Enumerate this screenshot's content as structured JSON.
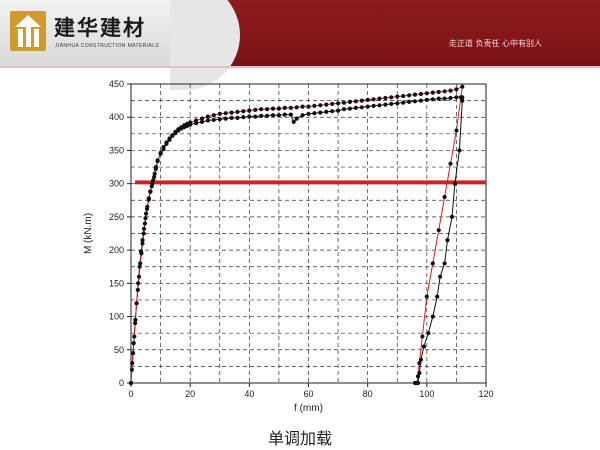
{
  "header": {
    "logo_name": "建华建材",
    "logo_subtitle": "JIANHUA CONSTRUCTION MATERIALS",
    "slogan": "走正道  负责任  心中有别人"
  },
  "caption": "单调加载",
  "chart_data": {
    "type": "line",
    "xlabel": "f (mm)",
    "ylabel": "M (kN.m)",
    "xlim": [
      0,
      120
    ],
    "ylim": [
      0,
      450
    ],
    "x_ticks": [
      0,
      20,
      40,
      60,
      80,
      100,
      120
    ],
    "y_ticks": [
      0,
      50,
      100,
      150,
      200,
      250,
      300,
      350,
      400,
      450
    ],
    "grid": "dashed",
    "colors": {
      "series_a": "#111111",
      "series_b": "#d42020",
      "reference": "#d42020"
    },
    "reference_line": {
      "y": 302
    },
    "series": [
      {
        "points": [
          [
            0,
            0
          ],
          [
            0.3,
            20
          ],
          [
            0.7,
            45
          ],
          [
            1.1,
            70
          ],
          [
            1.5,
            95
          ],
          [
            1.9,
            120
          ],
          [
            2.3,
            140
          ],
          [
            2.7,
            160
          ],
          [
            3.1,
            180
          ],
          [
            3.5,
            195
          ],
          [
            3.9,
            210
          ],
          [
            4.3,
            225
          ],
          [
            4.7,
            240
          ],
          [
            5.1,
            255
          ],
          [
            5.5,
            265
          ],
          [
            6.0,
            278
          ],
          [
            6.5,
            288
          ],
          [
            7.0,
            296
          ],
          [
            7.5,
            305
          ],
          [
            8.0,
            315
          ],
          [
            8.5,
            325
          ],
          [
            9.0,
            335
          ],
          [
            10,
            345
          ],
          [
            11,
            352
          ],
          [
            12,
            360
          ],
          [
            13,
            366
          ],
          [
            14,
            372
          ],
          [
            15,
            376
          ],
          [
            16,
            380
          ],
          [
            17,
            383
          ],
          [
            18,
            385
          ],
          [
            19,
            387
          ],
          [
            20,
            389
          ],
          [
            22,
            391
          ],
          [
            24,
            393
          ],
          [
            26,
            395
          ],
          [
            28,
            396
          ],
          [
            30,
            397
          ],
          [
            32,
            398
          ],
          [
            34,
            399
          ],
          [
            36,
            399
          ],
          [
            38,
            400
          ],
          [
            40,
            401
          ],
          [
            42,
            401
          ],
          [
            44,
            402
          ],
          [
            46,
            402
          ],
          [
            48,
            403
          ],
          [
            50,
            403
          ],
          [
            52,
            404
          ],
          [
            54,
            404
          ],
          [
            55,
            393
          ],
          [
            56,
            398
          ],
          [
            58,
            403
          ],
          [
            60,
            405
          ],
          [
            62,
            406
          ],
          [
            64,
            407
          ],
          [
            66,
            408
          ],
          [
            68,
            409
          ],
          [
            70,
            410
          ],
          [
            72,
            412
          ],
          [
            74,
            413
          ],
          [
            76,
            414
          ],
          [
            78,
            415
          ],
          [
            80,
            416
          ],
          [
            82,
            417
          ],
          [
            84,
            418
          ],
          [
            86,
            419
          ],
          [
            88,
            420
          ],
          [
            90,
            421
          ],
          [
            92,
            422
          ],
          [
            94,
            423
          ],
          [
            96,
            424
          ],
          [
            98,
            425
          ],
          [
            100,
            426
          ],
          [
            102,
            427
          ],
          [
            104,
            428
          ],
          [
            106,
            428
          ],
          [
            108,
            429
          ],
          [
            110,
            430
          ],
          [
            112,
            430
          ],
          [
            112,
            425
          ],
          [
            111,
            350
          ],
          [
            109.5,
            300
          ],
          [
            108.5,
            250
          ],
          [
            107,
            215
          ],
          [
            106,
            180
          ],
          [
            104.5,
            160
          ],
          [
            103.5,
            130
          ],
          [
            102,
            100
          ],
          [
            100.5,
            75
          ],
          [
            99,
            55
          ],
          [
            98,
            35
          ],
          [
            97.5,
            15
          ],
          [
            97,
            0
          ],
          [
            96,
            0
          ]
        ]
      },
      {
        "points": [
          [
            0,
            0
          ],
          [
            0.4,
            30
          ],
          [
            0.9,
            60
          ],
          [
            1.4,
            90
          ],
          [
            1.9,
            120
          ],
          [
            2.4,
            150
          ],
          [
            2.9,
            175
          ],
          [
            3.4,
            198
          ],
          [
            3.9,
            215
          ],
          [
            4.4,
            232
          ],
          [
            4.9,
            248
          ],
          [
            5.4,
            262
          ],
          [
            6.0,
            276
          ],
          [
            6.6,
            288
          ],
          [
            7.2,
            300
          ],
          [
            7.8,
            310
          ],
          [
            8.4,
            322
          ],
          [
            9.0,
            334
          ],
          [
            10,
            346
          ],
          [
            11,
            355
          ],
          [
            12,
            362
          ],
          [
            13,
            368
          ],
          [
            14,
            373
          ],
          [
            15,
            378
          ],
          [
            16,
            382
          ],
          [
            17,
            385
          ],
          [
            18,
            388
          ],
          [
            19,
            390
          ],
          [
            20,
            392
          ],
          [
            22,
            395
          ],
          [
            24,
            398
          ],
          [
            26,
            401
          ],
          [
            28,
            403
          ],
          [
            30,
            405
          ],
          [
            32,
            406
          ],
          [
            34,
            407
          ],
          [
            36,
            408
          ],
          [
            38,
            409
          ],
          [
            40,
            410
          ],
          [
            42,
            411
          ],
          [
            44,
            412
          ],
          [
            46,
            412
          ],
          [
            48,
            413
          ],
          [
            50,
            413
          ],
          [
            52,
            414
          ],
          [
            54,
            414
          ],
          [
            56,
            415
          ],
          [
            58,
            416
          ],
          [
            60,
            416
          ],
          [
            62,
            417
          ],
          [
            64,
            418
          ],
          [
            66,
            419
          ],
          [
            68,
            420
          ],
          [
            70,
            421
          ],
          [
            72,
            422
          ],
          [
            74,
            423
          ],
          [
            76,
            424
          ],
          [
            78,
            425
          ],
          [
            80,
            426
          ],
          [
            82,
            427
          ],
          [
            84,
            428
          ],
          [
            86,
            429
          ],
          [
            88,
            430
          ],
          [
            90,
            431
          ],
          [
            92,
            432
          ],
          [
            94,
            433
          ],
          [
            96,
            434
          ],
          [
            98,
            435
          ],
          [
            100,
            436
          ],
          [
            102,
            437
          ],
          [
            104,
            438
          ],
          [
            106,
            439
          ],
          [
            108,
            440
          ],
          [
            110,
            442
          ],
          [
            112,
            446
          ],
          [
            111.5,
            430
          ],
          [
            110,
            380
          ],
          [
            108,
            330
          ],
          [
            106,
            280
          ],
          [
            104,
            230
          ],
          [
            102,
            180
          ],
          [
            100,
            130
          ],
          [
            98.5,
            70
          ],
          [
            97.5,
            30
          ],
          [
            97,
            10
          ],
          [
            96.5,
            0
          ]
        ]
      }
    ]
  }
}
